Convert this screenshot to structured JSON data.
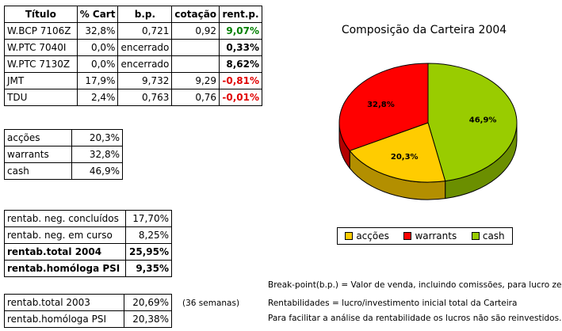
{
  "main_table": {
    "headers": [
      "Título",
      "% Cart",
      "b.p.",
      "cotação",
      "rent.p."
    ],
    "rows": [
      {
        "title": "W.BCP 7106Z",
        "cart": "32,8%",
        "bp": "0,721",
        "cot": "0,92",
        "rent": "9,07%",
        "rent_color": "green"
      },
      {
        "title": "W.PTC 7040I",
        "cart": "0,0%",
        "bp": "encerrado",
        "cot": "",
        "rent": "0,33%",
        "rent_color": "black"
      },
      {
        "title": "W.PTC 7130Z",
        "cart": "0,0%",
        "bp": "encerrado",
        "cot": "",
        "rent": "8,62%",
        "rent_color": "black"
      },
      {
        "title": "JMT",
        "cart": "17,9%",
        "bp": "9,732",
        "cot": "9,29",
        "rent": "-0,81%",
        "rent_color": "red"
      },
      {
        "title": "TDU",
        "cart": "2,4%",
        "bp": "0,763",
        "cot": "0,76",
        "rent": "-0,01%",
        "rent_color": "red"
      }
    ]
  },
  "alloc_table": {
    "rows": [
      {
        "label": "acções",
        "value": "20,3%"
      },
      {
        "label": "warrants",
        "value": "32,8%"
      },
      {
        "label": "cash",
        "value": "46,9%"
      }
    ]
  },
  "rentab_table": {
    "rows": [
      {
        "label": "rentab. neg. concluídos",
        "value": "17,70%",
        "bold": false
      },
      {
        "label": "rentab. neg. em curso",
        "value": "8,25%",
        "bold": false
      },
      {
        "label": "rentab.total 2004",
        "value": "25,95%",
        "bold": true
      },
      {
        "label": "rentab.homóloga PSI",
        "value": "9,35%",
        "bold": true
      }
    ]
  },
  "rentab_2003_table": {
    "rows": [
      {
        "label": "rentab.total 2003",
        "value": "20,69%"
      },
      {
        "label": "rentab.homóloga PSI",
        "value": "20,38%"
      }
    ],
    "side_note": "(36 semanas)"
  },
  "notes": {
    "line1": "Break-point(b.p.) = Valor de venda, incluindo comissões, para lucro zero.",
    "line2": "Rentabilidades = lucro/investimento inicial total da Carteira",
    "line3": "Para facilitar a análise da rentabilidade os lucros não são reinvestidos."
  },
  "chart_data": {
    "type": "pie",
    "title": "Composição da Carteira 2004",
    "slices": [
      {
        "name": "acções",
        "value": 20.3,
        "label": "20,3%",
        "color": "#ffcc00"
      },
      {
        "name": "warrants",
        "value": 32.8,
        "label": "32,8%",
        "color": "#ff0000"
      },
      {
        "name": "cash",
        "value": 46.9,
        "label": "46,9%",
        "color": "#99cc00"
      }
    ],
    "legend_position": "bottom"
  }
}
